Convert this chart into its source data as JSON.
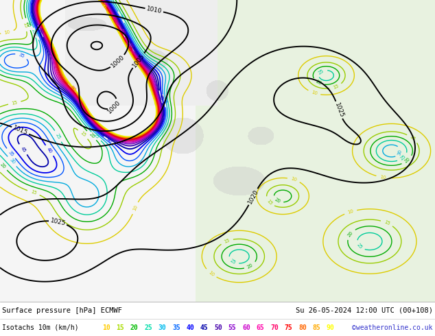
{
  "title_line1": "Surface pressure [hPa] ECMWF",
  "title_line2": "Su 26-05-2024 12:00 UTC (00+108)",
  "legend_label": "Isotachs 10m (km/h)",
  "copyright": "©weatheronline.co.uk",
  "isotach_values": [
    10,
    15,
    20,
    25,
    30,
    35,
    40,
    45,
    50,
    55,
    60,
    65,
    70,
    75,
    80,
    85,
    90
  ],
  "legend_colors": [
    "#ffcc00",
    "#aadd00",
    "#00bb00",
    "#00ddaa",
    "#00bbee",
    "#0066ff",
    "#0000ff",
    "#0000aa",
    "#4400aa",
    "#8800cc",
    "#cc00cc",
    "#ff00aa",
    "#ff0066",
    "#ff0000",
    "#ff6600",
    "#ffaa00",
    "#ffff00"
  ],
  "bg_color": "#ffffff",
  "map_bg_left": "#f0f0f0",
  "map_bg_right": "#e8f4e0",
  "bottom_bar_color": "#f0f0f0",
  "fig_width": 6.34,
  "fig_height": 4.9,
  "dpi": 100
}
